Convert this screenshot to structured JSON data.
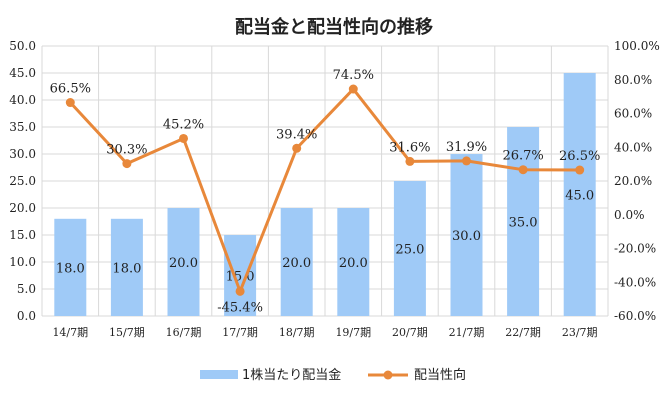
{
  "chart_data": {
    "type": "bar",
    "title": "配当金と配当性向の推移",
    "categories": [
      "14/7期",
      "15/7期",
      "16/7期",
      "17/7期",
      "18/7期",
      "19/7期",
      "20/7期",
      "21/7期",
      "22/7期",
      "23/7期"
    ],
    "series": [
      {
        "name": "1株当たり配当金",
        "type": "bar",
        "axis": "left",
        "color": "#9fcaf7",
        "values": [
          18.0,
          18.0,
          20.0,
          15.0,
          20.0,
          20.0,
          25.0,
          30.0,
          35.0,
          45.0
        ],
        "labels": [
          "18.0",
          "18.0",
          "20.0",
          "15.0",
          "20.0",
          "20.0",
          "25.0",
          "30.0",
          "35.0",
          "45.0"
        ]
      },
      {
        "name": "配当性向",
        "type": "line",
        "axis": "right",
        "color": "#e8883a",
        "values": [
          66.5,
          30.3,
          45.2,
          -45.4,
          39.4,
          74.5,
          31.6,
          31.9,
          26.7,
          26.5
        ],
        "labels": [
          "66.5%",
          "30.3%",
          "45.2%",
          "-45.4%",
          "39.4%",
          "74.5%",
          "31.6%",
          "31.9%",
          "26.7%",
          "26.5%"
        ]
      }
    ],
    "left_axis": {
      "ylim": [
        0,
        50
      ],
      "ticks": [
        "0.0",
        "5.0",
        "10.0",
        "15.0",
        "20.0",
        "25.0",
        "30.0",
        "35.0",
        "40.0",
        "45.0",
        "50.0"
      ]
    },
    "right_axis": {
      "ylim": [
        -60,
        100
      ],
      "ticks": [
        "-60.0%",
        "-40.0%",
        "-20.0%",
        "0.0%",
        "20.0%",
        "40.0%",
        "60.0%",
        "80.0%",
        "100.0%"
      ]
    },
    "grid": true,
    "legend": "bottom"
  }
}
